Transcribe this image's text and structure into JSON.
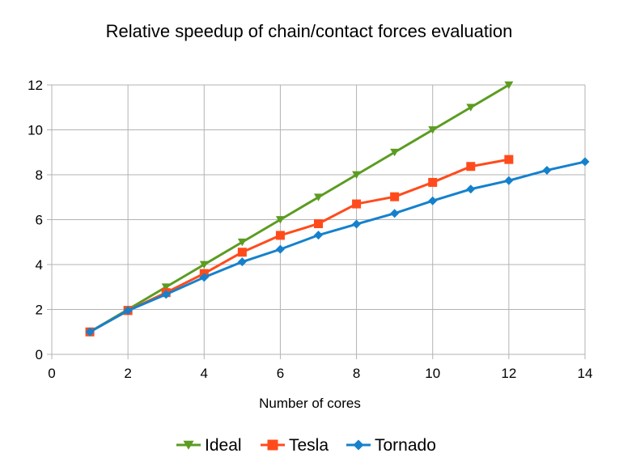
{
  "chart_data": {
    "type": "line",
    "title": "Relative speedup of chain/contact forces evaluation",
    "xlabel": "Number of cores",
    "ylabel": "",
    "xlim": [
      0,
      14
    ],
    "ylim": [
      0,
      12
    ],
    "xticks": [
      0,
      2,
      4,
      6,
      8,
      10,
      12,
      14
    ],
    "yticks": [
      0,
      2,
      4,
      6,
      8,
      10,
      12
    ],
    "grid": true,
    "legend_position": "bottom",
    "series": [
      {
        "name": "Ideal",
        "color": "#5b9c21",
        "marker": "triangle-down",
        "x": [
          1,
          2,
          3,
          4,
          5,
          6,
          7,
          8,
          9,
          10,
          11,
          12
        ],
        "y": [
          1,
          2,
          3,
          4,
          5,
          6,
          7,
          8,
          9,
          10,
          11,
          12
        ]
      },
      {
        "name": "Tesla",
        "color": "#ff4b1c",
        "marker": "square",
        "x": [
          1,
          2,
          3,
          4,
          5,
          6,
          7,
          8,
          9,
          10,
          11,
          12
        ],
        "y": [
          1.0,
          1.95,
          2.75,
          3.6,
          4.55,
          5.3,
          5.82,
          6.7,
          7.02,
          7.66,
          8.37,
          8.68
        ]
      },
      {
        "name": "Tornado",
        "color": "#1581cc",
        "marker": "diamond",
        "x": [
          1,
          2,
          3,
          4,
          5,
          6,
          7,
          8,
          9,
          10,
          11,
          12,
          13,
          14
        ],
        "y": [
          1.0,
          1.95,
          2.67,
          3.43,
          4.12,
          4.68,
          5.31,
          5.8,
          6.28,
          6.84,
          7.36,
          7.74,
          8.2,
          8.58
        ]
      }
    ]
  }
}
